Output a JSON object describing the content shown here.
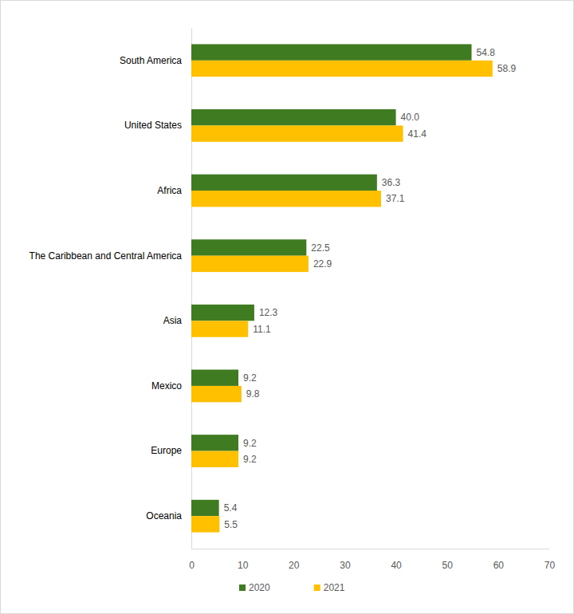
{
  "chart_data": {
    "type": "bar",
    "orientation": "horizontal",
    "categories": [
      "South America",
      "United States",
      "Africa",
      "The Caribbean and Central America",
      "Asia",
      "Mexico",
      "Europe",
      "Oceania"
    ],
    "series": [
      {
        "name": "2020",
        "color": "#3e7b21",
        "values": [
          54.8,
          40.0,
          36.3,
          22.5,
          12.3,
          9.2,
          9.2,
          5.4
        ],
        "value_labels": [
          "54.8",
          "40.0",
          "36.3",
          "22.5",
          "12.3",
          "9.2",
          "9.2",
          "5.4"
        ]
      },
      {
        "name": "2021",
        "color": "#ffc000",
        "values": [
          58.9,
          41.4,
          37.1,
          22.9,
          11.1,
          9.8,
          9.2,
          5.5
        ],
        "value_labels": [
          "58.9",
          "41.4",
          "37.1",
          "22.9",
          "11.1",
          "9.8",
          "9.2",
          "5.5"
        ]
      }
    ],
    "xlim": [
      0,
      70
    ],
    "xticks": [
      0,
      10,
      20,
      30,
      40,
      50,
      60,
      70
    ],
    "grid": false,
    "data_labels": true,
    "legend": "bottom"
  }
}
